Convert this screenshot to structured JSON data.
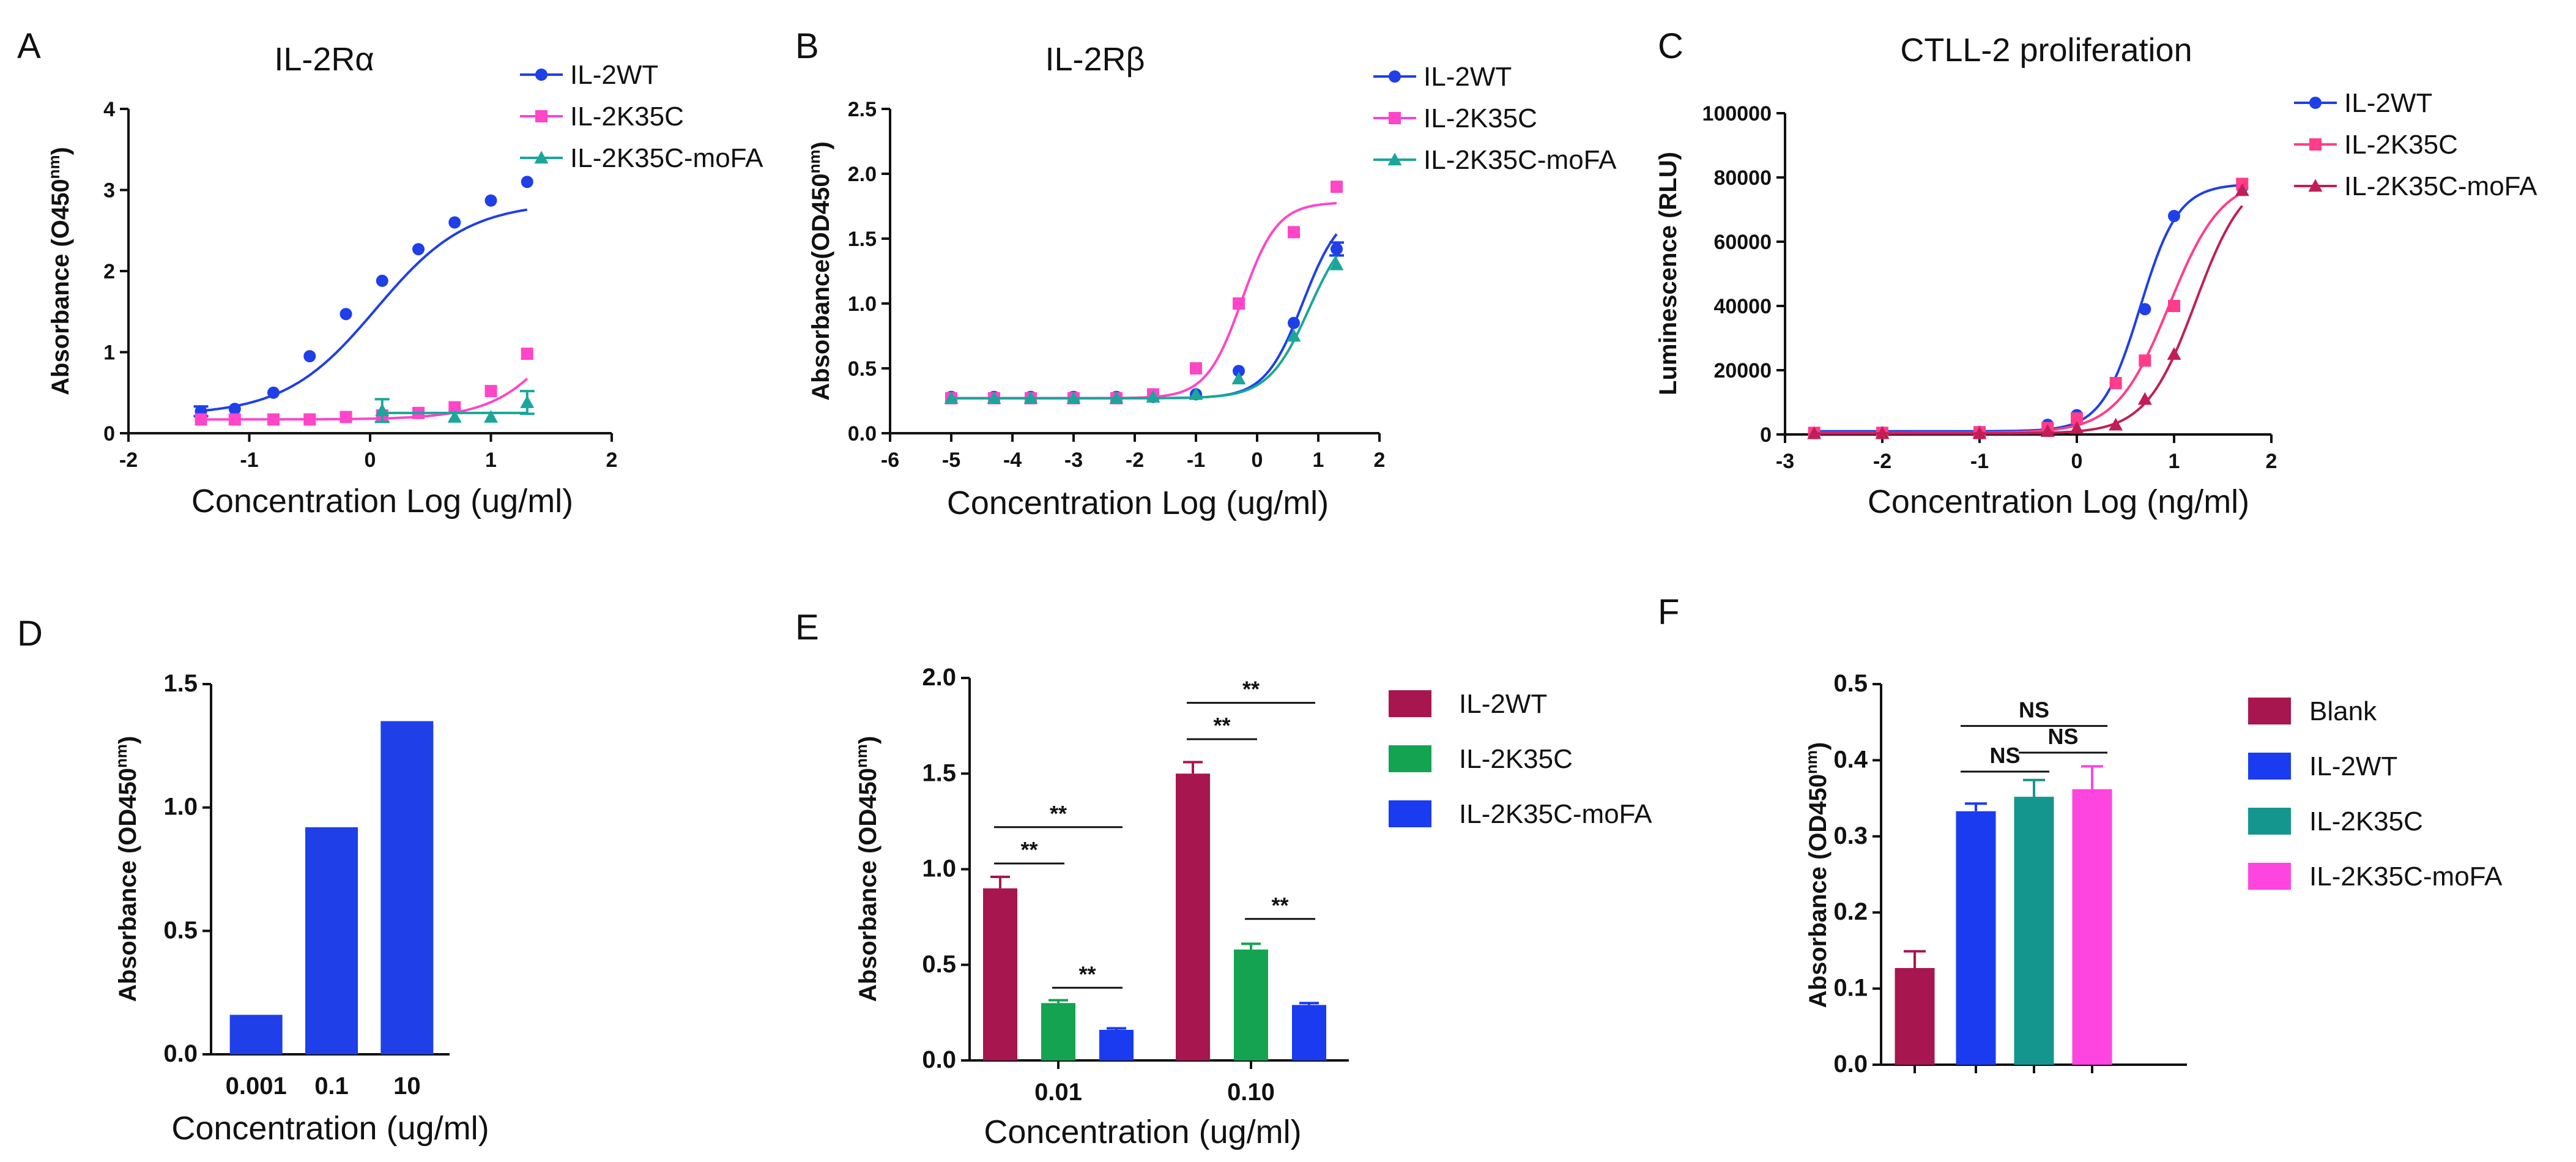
{
  "chart_data": [
    {
      "panel": "A",
      "type": "line",
      "title": "IL-2Rα",
      "xlabel": "Concentration  Log (ug/ml)",
      "ylabel": "Absorbance (O450",
      "ylabel_sup": "nm",
      "ylabel_close": ")",
      "xlim": [
        -2,
        2
      ],
      "ylim": [
        0,
        4
      ],
      "xticks": [
        -2,
        -1,
        0,
        1,
        2
      ],
      "yticks": [
        0,
        1,
        2,
        3,
        4
      ],
      "series": [
        {
          "name": "IL-2WT",
          "color": "#1f3fe8",
          "marker": "circle",
          "x": [
            -1.4,
            -1.12,
            -0.8,
            -0.5,
            -0.2,
            0.1,
            0.4,
            0.7,
            1.0,
            1.3
          ],
          "y": [
            0.27,
            0.3,
            0.5,
            0.95,
            1.47,
            1.88,
            2.27,
            2.6,
            2.87,
            3.1
          ],
          "err": [
            0.06,
            0,
            0,
            0,
            0,
            0,
            0,
            0,
            0,
            0
          ],
          "fit": {
            "bottom": 0.22,
            "top": 2.85,
            "ec50": 0.05,
            "hill": 1.15
          }
        },
        {
          "name": "IL-2K35C",
          "color": "#ff45c8",
          "marker": "square",
          "x": [
            -1.4,
            -1.12,
            -0.8,
            -0.5,
            -0.2,
            0.1,
            0.4,
            0.7,
            1.0,
            1.3
          ],
          "y": [
            0.17,
            0.17,
            0.17,
            0.17,
            0.2,
            0.22,
            0.25,
            0.32,
            0.52,
            0.98
          ],
          "err": [
            0,
            0,
            0,
            0,
            0,
            0,
            0,
            0,
            0,
            0
          ],
          "fit": {
            "bottom": 0.17,
            "top": 3.2,
            "ec50": 1.8,
            "hill": 1.4
          }
        },
        {
          "name": "IL-2K35C-moFA",
          "color": "#1aa69a",
          "marker": "triangle",
          "x": [
            0.1,
            0.7,
            1.0,
            1.3
          ],
          "y": [
            0.28,
            0.2,
            0.2,
            0.38
          ],
          "err": [
            0.14,
            0,
            0,
            0.14
          ],
          "fit": {
            "bottom": 0.25,
            "top": 0.25,
            "ec50": 0,
            "hill": 1
          }
        }
      ]
    },
    {
      "panel": "B",
      "type": "line",
      "title": "IL-2Rβ",
      "xlabel": "Concentration  Log (ug/ml)",
      "ylabel": "Absorbance(OD450",
      "ylabel_sup": "nm",
      "ylabel_close": ")",
      "xlim": [
        -6,
        2
      ],
      "ylim": [
        0,
        2.5
      ],
      "xticks": [
        -6,
        -5,
        -4,
        -3,
        -2,
        -1,
        0,
        1,
        2
      ],
      "yticks": [
        0.0,
        0.5,
        1.0,
        1.5,
        2.0,
        2.5
      ],
      "series": [
        {
          "name": "IL-2WT",
          "color": "#1f3fe8",
          "marker": "circle",
          "x": [
            -5,
            -4.3,
            -3.7,
            -3,
            -2.3,
            -1.7,
            -1,
            -0.3,
            0.6,
            1.3
          ],
          "y": [
            0.28,
            0.28,
            0.28,
            0.28,
            0.28,
            0.28,
            0.3,
            0.48,
            0.85,
            1.42
          ],
          "err": [
            0,
            0,
            0,
            0,
            0,
            0,
            0,
            0,
            0,
            0.05
          ],
          "fit": {
            "bottom": 0.27,
            "top": 1.75,
            "ec50": 0.75,
            "hill": 1.4
          }
        },
        {
          "name": "IL-2K35C",
          "color": "#ff45c8",
          "marker": "square",
          "x": [
            -5,
            -4.3,
            -3.7,
            -3,
            -2.3,
            -1.7,
            -1,
            -0.3,
            0.6,
            1.3
          ],
          "y": [
            0.27,
            0.27,
            0.27,
            0.27,
            0.27,
            0.3,
            0.5,
            1.0,
            1.55,
            1.9
          ],
          "err": [
            0,
            0,
            0,
            0,
            0,
            0,
            0,
            0,
            0,
            0
          ],
          "fit": {
            "bottom": 0.27,
            "top": 1.78,
            "ec50": -0.25,
            "hill": 1.5
          }
        },
        {
          "name": "IL-2K35C-moFA",
          "color": "#1aa69a",
          "marker": "triangle",
          "x": [
            -5,
            -4.3,
            -3.7,
            -3,
            -2.3,
            -1.7,
            -1,
            -0.3,
            0.6,
            1.3
          ],
          "y": [
            0.27,
            0.27,
            0.27,
            0.27,
            0.27,
            0.28,
            0.3,
            0.42,
            0.75,
            1.3
          ],
          "err": [
            0,
            0,
            0,
            0,
            0,
            0,
            0,
            0,
            0,
            0
          ],
          "fit": {
            "bottom": 0.27,
            "top": 1.65,
            "ec50": 0.85,
            "hill": 1.3
          }
        }
      ]
    },
    {
      "panel": "C",
      "type": "line",
      "title": "CTLL-2 proliferation",
      "xlabel": "Concentration  Log (ng/ml)",
      "ylabel": "Luminescence  (RLU)",
      "xlim": [
        -3,
        2
      ],
      "ylim": [
        0,
        100000
      ],
      "xticks": [
        -3,
        -2,
        -1,
        0,
        1,
        2
      ],
      "yticks": [
        0,
        20000,
        40000,
        60000,
        80000,
        100000
      ],
      "series": [
        {
          "name": "IL-2WT",
          "color": "#1f3fe8",
          "marker": "circle",
          "x": [
            -2.7,
            -2,
            -1,
            -0.3,
            0,
            0.4,
            0.7,
            1.0,
            1.7
          ],
          "y": [
            500,
            600,
            800,
            3000,
            6000,
            16000,
            39000,
            68000,
            77000
          ],
          "err": [
            0,
            0,
            0,
            0,
            0,
            0,
            0,
            0,
            0
          ],
          "fit": {
            "bottom": 1000,
            "top": 78000,
            "ec50": 0.65,
            "hill": 2.2
          }
        },
        {
          "name": "IL-2K35C",
          "color": "#ff3d8a",
          "marker": "square",
          "x": [
            -2.7,
            -2,
            -1,
            -0.3,
            0,
            0.4,
            0.7,
            1.0,
            1.7
          ],
          "y": [
            500,
            500,
            700,
            2000,
            5000,
            16000,
            23000,
            40000,
            78000
          ],
          "err": [
            0,
            0,
            0,
            0,
            0,
            0,
            0,
            0,
            0
          ],
          "fit": {
            "bottom": 500,
            "top": 80000,
            "ec50": 0.95,
            "hill": 1.6
          }
        },
        {
          "name": "IL-2K35C-moFA",
          "color": "#c21e56",
          "marker": "triangle",
          "x": [
            -2.7,
            -2,
            -1,
            -0.3,
            0,
            0.4,
            0.7,
            1.0,
            1.7
          ],
          "y": [
            300,
            300,
            300,
            1000,
            2000,
            3000,
            11000,
            25000,
            76000
          ],
          "err": [
            0,
            0,
            0,
            0,
            0,
            0,
            0,
            0,
            0
          ],
          "fit": {
            "bottom": 300,
            "top": 82000,
            "ec50": 1.22,
            "hill": 1.7
          }
        }
      ]
    },
    {
      "panel": "D",
      "type": "bar",
      "title": "",
      "xlabel": "Concentration (ug/ml)",
      "ylabel": "Absorbance (OD450",
      "ylabel_sup": "nm",
      "ylabel_close": ")",
      "ylim": [
        0,
        1.5
      ],
      "yticks": [
        0.0,
        0.5,
        1.0,
        1.5
      ],
      "categories": [
        "0.001",
        "0.1",
        "10"
      ],
      "values": [
        0.16,
        0.92,
        1.35
      ],
      "color": "#1f3fe8"
    },
    {
      "panel": "E",
      "type": "bar",
      "title": "",
      "xlabel": "Concentration (ug/ml)",
      "ylabel": "Absorbance (OD450",
      "ylabel_sup": "nm",
      "ylabel_close": ")",
      "ylim": [
        0,
        2.0
      ],
      "yticks": [
        0.0,
        0.5,
        1.0,
        1.5,
        2.0
      ],
      "categories": [
        "0.01",
        "0.10"
      ],
      "series": [
        {
          "name": "IL-2WT",
          "color": "#a8164f",
          "values": [
            0.9,
            1.5
          ],
          "err": [
            0.06,
            0.06
          ]
        },
        {
          "name": "IL-2K35C",
          "color": "#13a351",
          "values": [
            0.3,
            0.58
          ],
          "err": [
            0.015,
            0.03
          ]
        },
        {
          "name": "IL-2K35C-moFA",
          "color": "#1a3bf0",
          "values": [
            0.16,
            0.29
          ],
          "err": [
            0.008,
            0.01
          ]
        }
      ],
      "significance": [
        {
          "group": 0,
          "from": 0,
          "to": 1,
          "y": 1.03,
          "label": "**"
        },
        {
          "group": 0,
          "from": 0,
          "to": 2,
          "y": 1.22,
          "label": "**"
        },
        {
          "group": 0,
          "from": 1,
          "to": 2,
          "y": 0.38,
          "label": "**"
        },
        {
          "group": 1,
          "from": 0,
          "to": 1,
          "y": 1.68,
          "label": "**"
        },
        {
          "group": 1,
          "from": 0,
          "to": 2,
          "y": 1.87,
          "label": "**"
        },
        {
          "group": 1,
          "from": 1,
          "to": 2,
          "y": 0.74,
          "label": "**"
        }
      ]
    },
    {
      "panel": "F",
      "type": "bar",
      "title": "",
      "xlabel": "",
      "ylabel": "Absorbance  (OD450",
      "ylabel_sup": "nm",
      "ylabel_close": ")",
      "ylim": [
        0,
        0.5
      ],
      "yticks": [
        0.0,
        0.1,
        0.2,
        0.3,
        0.4,
        0.5
      ],
      "categories": [
        "Blank",
        "IL-2WT",
        "IL-2K35C",
        "IL-2K35C-moFA"
      ],
      "values": [
        0.127,
        0.333,
        0.352,
        0.362
      ],
      "err": [
        0.022,
        0.01,
        0.022,
        0.03
      ],
      "colors": [
        "#a8164f",
        "#1a3bf0",
        "#14968e",
        "#ff45e0"
      ],
      "significance": [
        {
          "from": 1,
          "to": 2,
          "y": 0.385,
          "label": "NS"
        },
        {
          "from": 2,
          "to": 3,
          "y": 0.41,
          "label": "NS"
        },
        {
          "from": 1,
          "to": 3,
          "y": 0.445,
          "label": "NS"
        }
      ]
    }
  ]
}
